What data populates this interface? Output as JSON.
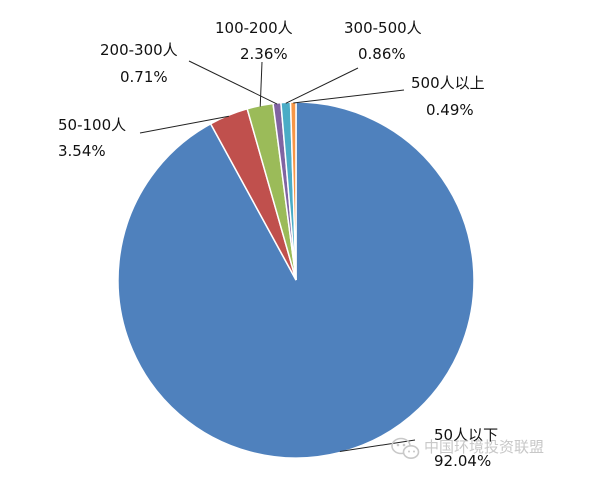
{
  "chart_data": {
    "type": "pie",
    "title": "",
    "start_angle_deg": 0,
    "direction": "clockwise",
    "slices": [
      {
        "name": "50人以下",
        "label": "92.04%",
        "value": 92.04,
        "color": "#4f81bd"
      },
      {
        "name": "50-100人",
        "label": "3.54%",
        "value": 3.54,
        "color": "#c0504d"
      },
      {
        "name": "100-200人",
        "label": "2.36%",
        "value": 2.36,
        "color": "#9bbb59"
      },
      {
        "name": "200-300人",
        "label": "0.71%",
        "value": 0.71,
        "color": "#8064a2"
      },
      {
        "name": "300-500人",
        "label": "0.86%",
        "value": 0.86,
        "color": "#4bacc6"
      },
      {
        "name": "500人以上",
        "label": "0.49%",
        "value": 0.49,
        "color": "#f79646"
      }
    ]
  },
  "watermark": {
    "text": "中国环境投资联盟",
    "icon": "wechat-icon"
  }
}
